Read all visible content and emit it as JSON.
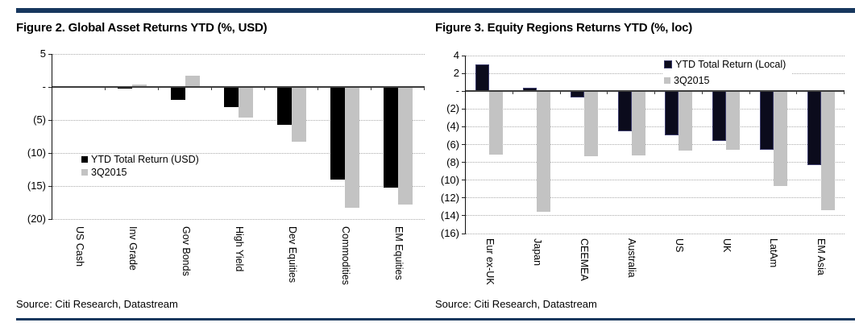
{
  "page": {
    "accent_color": "#17375E",
    "bar_black": "#000000",
    "bar_navy_black": "#0b0b1c",
    "bar_navy_border": "#3b3b6b",
    "bar_gray": "#c3c3c3",
    "gridline_color": "#ababab",
    "axis_color": "#3d3d3d"
  },
  "chart_data": [
    {
      "type": "bar",
      "title": "Figure 2. Global Asset Returns YTD (%, USD)",
      "source": "Source: Citi Research,  Datastream",
      "categories": [
        "US Cash",
        "Inv Grade",
        "Gov Bonds",
        "High Yield",
        "Dev Equities",
        "Commodities",
        "EM Equities"
      ],
      "series": [
        {
          "name": "YTD Total Return (USD)",
          "color": "#000000",
          "border": "",
          "values": [
            0.1,
            -0.2,
            -2.0,
            -3.1,
            -5.7,
            -14.0,
            -15.2
          ]
        },
        {
          "name": "3Q2015",
          "color": "#c3c3c3",
          "border": "",
          "values": [
            0.0,
            0.4,
            1.7,
            -4.6,
            -8.3,
            -18.3,
            -17.8
          ]
        }
      ],
      "ylim": [
        -20,
        5
      ],
      "ytick_step": 5,
      "ytick_labels": [
        "5",
        "-",
        "(5)",
        "(10)",
        "(15)",
        "(20)"
      ],
      "grid": "horizontal-dotted",
      "legend_position": "middle-left",
      "ylabel": "",
      "xlabel": ""
    },
    {
      "type": "bar",
      "title": "Figure 3. Equity Regions Returns YTD (%, loc)",
      "source": "Source: Citi Research,  Datastream",
      "categories": [
        "Eur ex-UK",
        "Japan",
        "CEEMEA",
        "Australia",
        "US",
        "UK",
        "LatAm",
        "EM Asia"
      ],
      "series": [
        {
          "name": "YTD Total Return (Local)",
          "color": "#0b0b1c",
          "border": "#3b3b6b",
          "values": [
            3.0,
            0.4,
            -0.7,
            -4.5,
            -5.0,
            -5.6,
            -6.6,
            -8.3
          ]
        },
        {
          "name": "3Q2015",
          "color": "#c3c3c3",
          "border": "",
          "values": [
            -7.1,
            -13.6,
            -7.3,
            -7.2,
            -6.7,
            -6.6,
            -10.7,
            -13.4
          ]
        }
      ],
      "ylim": [
        -16,
        4
      ],
      "ytick_step": 2,
      "ytick_labels": [
        "4",
        "2",
        "-",
        "(2)",
        "(4)",
        "(6)",
        "(8)",
        "(10)",
        "(12)",
        "(14)",
        "(16)"
      ],
      "grid": "horizontal-dotted",
      "legend_position": "top-right",
      "ylabel": "",
      "xlabel": ""
    }
  ]
}
